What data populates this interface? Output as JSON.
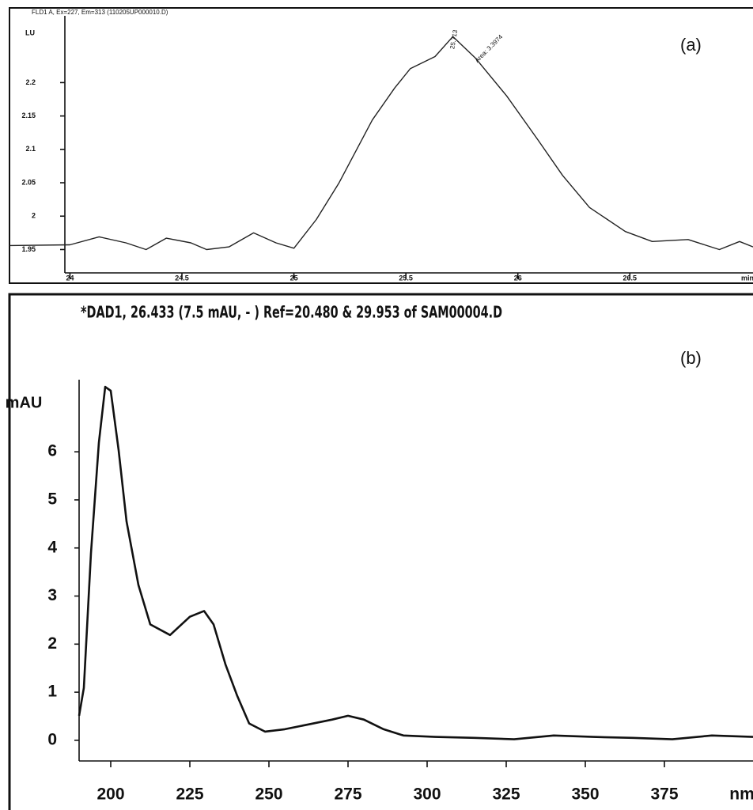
{
  "chart_data": [
    {
      "type": "line",
      "title": "FLD1 A, Ex=227, Em=313 (110205UP000010.D)",
      "y_label": "LU",
      "x_label": "min",
      "panel_label": "(a)",
      "annotations": [
        "25.713",
        "Area: 3.3974"
      ],
      "xlim": [
        23.73,
        27.05
      ],
      "xticks": [
        24,
        24.5,
        25,
        25.5,
        26,
        26.5
      ],
      "ylim": [
        1.915,
        2.3
      ],
      "yticks": [
        1.95,
        2,
        2.05,
        2.1,
        2.15,
        2.2
      ],
      "color": "#222222",
      "x": [
        23.73,
        24,
        24.13,
        24.25,
        24.34,
        24.43,
        24.54,
        24.61,
        24.71,
        24.82,
        24.92,
        25,
        25.1,
        25.2,
        25.35,
        25.45,
        25.52,
        25.63,
        25.71,
        25.81,
        25.95,
        26.09,
        26.2,
        26.32,
        26.48,
        26.6,
        26.76,
        26.9,
        26.99,
        27.05
      ],
      "values": [
        1.956,
        1.957,
        1.969,
        1.96,
        1.95,
        1.967,
        1.96,
        1.95,
        1.954,
        1.975,
        1.96,
        1.952,
        1.995,
        2.049,
        2.144,
        2.192,
        2.221,
        2.239,
        2.269,
        2.237,
        2.18,
        2.114,
        2.061,
        2.013,
        1.977,
        1.962,
        1.965,
        1.95,
        1.962,
        1.954
      ]
    },
    {
      "type": "line",
      "title": "*DAD1, 26.433 (7.5 mAU, - ) Ref=20.480 & 29.953 of SAM00004.D",
      "y_label": "mAU",
      "x_label": "nm",
      "panel_label": "(b)",
      "xlim": [
        190,
        403
      ],
      "xticks": [
        200,
        225,
        250,
        275,
        300,
        325,
        350,
        375
      ],
      "ylim": [
        -0.43,
        7.5
      ],
      "yticks": [
        0,
        1,
        2,
        3,
        4,
        5,
        6
      ],
      "color": "#111111",
      "x": [
        190,
        191.5,
        193.75,
        196.25,
        198.25,
        200,
        202.5,
        205,
        208.75,
        212.5,
        218.75,
        225,
        229.5,
        232.5,
        236.25,
        240,
        243.75,
        248.75,
        255,
        262.5,
        270,
        275,
        280,
        286.25,
        292.5,
        302.5,
        315,
        327.5,
        340,
        352.5,
        365,
        377.5,
        390,
        403
      ],
      "values": [
        0.51,
        1.09,
        3.89,
        6.19,
        7.35,
        7.27,
        6.03,
        4.55,
        3.23,
        2.41,
        2.19,
        2.57,
        2.69,
        2.41,
        1.58,
        0.92,
        0.35,
        0.18,
        0.23,
        0.33,
        0.43,
        0.51,
        0.43,
        0.23,
        0.1,
        0.07,
        0.05,
        0.02,
        0.1,
        0.07,
        0.05,
        0.02,
        0.1,
        0.07
      ]
    }
  ]
}
